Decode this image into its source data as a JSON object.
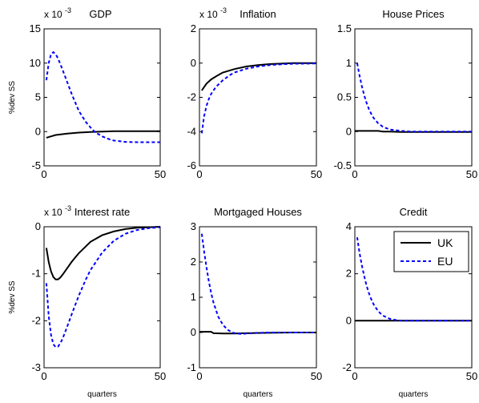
{
  "figure": {
    "colors": {
      "UK": "#000000",
      "EU": "#0000ff"
    },
    "legend": {
      "placement": "top-right",
      "panel": 5,
      "entries": [
        "UK",
        "EU"
      ]
    }
  },
  "chart_data": [
    {
      "type": "line",
      "title": "GDP",
      "ylabel": "%dev SS",
      "xlabel": "",
      "exponent_base": "x 10",
      "exponent_power": "-3",
      "xlim": [
        0,
        50
      ],
      "ylim": [
        -5,
        15
      ],
      "xticks": [
        0,
        50
      ],
      "yticks": [
        -5,
        0,
        5,
        10,
        15
      ],
      "series": [
        {
          "name": "UK",
          "x": [
            1,
            3,
            5,
            10,
            15,
            20,
            25,
            30,
            40,
            50
          ],
          "y": [
            -0.9,
            -0.7,
            -0.5,
            -0.3,
            -0.15,
            -0.05,
            0.0,
            0.05,
            0.05,
            0.05
          ]
        },
        {
          "name": "EU",
          "x": [
            1,
            2,
            3,
            4,
            5,
            6,
            8,
            10,
            12,
            15,
            18,
            20,
            22,
            25,
            28,
            30,
            35,
            40,
            45,
            50
          ],
          "y": [
            7.5,
            10.0,
            11.3,
            11.6,
            11.3,
            10.7,
            9.0,
            7.2,
            5.4,
            3.0,
            1.4,
            0.6,
            -0.1,
            -0.7,
            -1.1,
            -1.3,
            -1.5,
            -1.55,
            -1.55,
            -1.55
          ]
        }
      ]
    },
    {
      "type": "line",
      "title": "Inflation",
      "ylabel": "",
      "xlabel": "",
      "exponent_base": "x 10",
      "exponent_power": "-3",
      "xlim": [
        0,
        50
      ],
      "ylim": [
        -6,
        2
      ],
      "xticks": [
        0,
        50
      ],
      "yticks": [
        -6,
        -4,
        -2,
        0,
        2
      ],
      "series": [
        {
          "name": "UK",
          "x": [
            1,
            2,
            3,
            5,
            8,
            10,
            15,
            20,
            25,
            30,
            35,
            40,
            50
          ],
          "y": [
            -1.6,
            -1.4,
            -1.2,
            -0.95,
            -0.7,
            -0.55,
            -0.35,
            -0.2,
            -0.12,
            -0.06,
            -0.03,
            0.0,
            0.0
          ]
        },
        {
          "name": "EU",
          "x": [
            1,
            2,
            3,
            4,
            5,
            7,
            10,
            13,
            15,
            20,
            25,
            30,
            35,
            40,
            50
          ],
          "y": [
            -4.1,
            -3.1,
            -2.5,
            -2.1,
            -1.8,
            -1.4,
            -1.0,
            -0.7,
            -0.55,
            -0.33,
            -0.2,
            -0.12,
            -0.07,
            -0.04,
            -0.02
          ]
        }
      ]
    },
    {
      "type": "line",
      "title": "House Prices",
      "ylabel": "",
      "xlabel": "",
      "exponent_base": "",
      "exponent_power": "",
      "xlim": [
        0,
        50
      ],
      "ylim": [
        -0.5,
        1.5
      ],
      "xticks": [
        0,
        50
      ],
      "yticks": [
        -0.5,
        0,
        0.5,
        1,
        1.5
      ],
      "series": [
        {
          "name": "UK",
          "x": [
            0,
            10,
            12,
            15,
            20,
            30,
            40,
            50
          ],
          "y": [
            0.01,
            0.01,
            0.0,
            0.0,
            -0.005,
            -0.005,
            -0.005,
            -0.005
          ]
        },
        {
          "name": "EU",
          "x": [
            1,
            2,
            3,
            4,
            5,
            6,
            7,
            8,
            10,
            12,
            15,
            20,
            25,
            30,
            40,
            50
          ],
          "y": [
            1.0,
            0.82,
            0.66,
            0.53,
            0.42,
            0.33,
            0.26,
            0.2,
            0.12,
            0.07,
            0.03,
            0.01,
            0.0,
            0.0,
            0.0,
            0.0
          ]
        }
      ]
    },
    {
      "type": "line",
      "title": "Interest rate",
      "ylabel": "%dev SS",
      "xlabel": "quarters",
      "exponent_base": "x 10",
      "exponent_power": "-3",
      "xlim": [
        0,
        50
      ],
      "ylim": [
        -3,
        0
      ],
      "xticks": [
        0,
        50
      ],
      "yticks": [
        -3,
        -2,
        -1,
        0
      ],
      "series": [
        {
          "name": "UK",
          "x": [
            1,
            2,
            3,
            4,
            5,
            6,
            7,
            8,
            10,
            12,
            15,
            20,
            25,
            30,
            35,
            40,
            45,
            50
          ],
          "y": [
            -0.45,
            -0.75,
            -0.95,
            -1.07,
            -1.12,
            -1.12,
            -1.08,
            -1.02,
            -0.88,
            -0.74,
            -0.56,
            -0.32,
            -0.18,
            -0.1,
            -0.05,
            -0.02,
            -0.01,
            0.0
          ]
        },
        {
          "name": "EU",
          "x": [
            1,
            2,
            3,
            4,
            5,
            6,
            7,
            8,
            10,
            12,
            15,
            18,
            20,
            25,
            30,
            35,
            40,
            45,
            50
          ],
          "y": [
            -1.2,
            -1.9,
            -2.3,
            -2.5,
            -2.56,
            -2.55,
            -2.48,
            -2.38,
            -2.12,
            -1.85,
            -1.46,
            -1.12,
            -0.92,
            -0.55,
            -0.3,
            -0.15,
            -0.07,
            -0.03,
            -0.01
          ]
        }
      ]
    },
    {
      "type": "line",
      "title": "Mortgaged Houses",
      "ylabel": "",
      "xlabel": "quarters",
      "exponent_base": "",
      "exponent_power": "",
      "xlim": [
        0,
        50
      ],
      "ylim": [
        -1,
        3
      ],
      "xticks": [
        0,
        50
      ],
      "yticks": [
        -1,
        0,
        1,
        2,
        3
      ],
      "series": [
        {
          "name": "UK",
          "x": [
            0,
            5,
            6,
            10,
            15,
            20,
            30,
            40,
            50
          ],
          "y": [
            0.02,
            0.02,
            -0.02,
            -0.03,
            -0.03,
            -0.02,
            -0.01,
            0.0,
            0.0
          ]
        },
        {
          "name": "EU",
          "x": [
            1,
            2,
            3,
            4,
            5,
            6,
            8,
            10,
            12,
            14,
            16,
            18,
            20,
            25,
            30,
            40,
            50
          ],
          "y": [
            2.8,
            2.3,
            1.85,
            1.45,
            1.12,
            0.85,
            0.45,
            0.22,
            0.08,
            0.0,
            -0.03,
            -0.04,
            -0.03,
            -0.01,
            0.0,
            0.0,
            0.0
          ]
        }
      ]
    },
    {
      "type": "line",
      "title": "Credit",
      "ylabel": "",
      "xlabel": "quarters",
      "exponent_base": "",
      "exponent_power": "",
      "xlim": [
        0,
        50
      ],
      "ylim": [
        -2,
        4
      ],
      "xticks": [
        0,
        50
      ],
      "yticks": [
        -2,
        0,
        2,
        4
      ],
      "series": [
        {
          "name": "UK",
          "x": [
            0,
            10,
            20,
            30,
            40,
            50
          ],
          "y": [
            0.0,
            0.0,
            0.0,
            0.0,
            0.0,
            0.0
          ]
        },
        {
          "name": "EU",
          "x": [
            1,
            2,
            3,
            4,
            5,
            6,
            7,
            8,
            10,
            12,
            15,
            18,
            20,
            25,
            30,
            40,
            50
          ],
          "y": [
            3.55,
            2.9,
            2.35,
            1.9,
            1.5,
            1.18,
            0.92,
            0.7,
            0.4,
            0.22,
            0.08,
            0.02,
            0.0,
            0.0,
            0.0,
            0.0,
            0.0
          ]
        }
      ]
    }
  ]
}
